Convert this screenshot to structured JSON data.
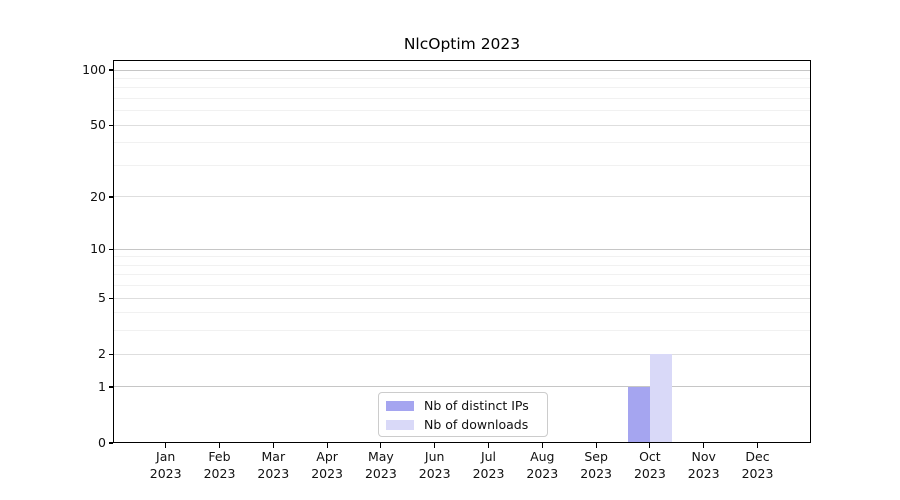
{
  "chart_data": {
    "type": "bar",
    "title": "NlcOptim 2023",
    "categories": [
      "Jan",
      "Feb",
      "Mar",
      "Apr",
      "May",
      "Jun",
      "Jul",
      "Aug",
      "Sep",
      "Oct",
      "Nov",
      "Dec"
    ],
    "category_year": "2023",
    "series": [
      {
        "name": "Nb of distinct IPs",
        "color": "#a5a5f0",
        "values": [
          0,
          0,
          0,
          0,
          0,
          0,
          0,
          0,
          0,
          1,
          0,
          0
        ]
      },
      {
        "name": "Nb of downloads",
        "color": "#d9d9f8",
        "values": [
          0,
          0,
          0,
          0,
          0,
          0,
          0,
          0,
          0,
          2,
          0,
          0
        ]
      }
    ],
    "yscale": "log1p",
    "ylim": [
      0,
      113
    ],
    "y_major_ticks": [
      0,
      1,
      2,
      5,
      10,
      20,
      50,
      100
    ],
    "y_decade_ticks": [
      1,
      10,
      100
    ],
    "y_minor_ticks": [
      3,
      4,
      6,
      7,
      8,
      9,
      30,
      40,
      60,
      70,
      80,
      90
    ],
    "grid": "horizontal",
    "legend_position": "lower center",
    "colors": {
      "axis": "#000000",
      "grid_decade": "#c6c6c6",
      "grid_major": "#dedede",
      "grid_minor": "#f1f1f1",
      "text": "#111111"
    }
  }
}
